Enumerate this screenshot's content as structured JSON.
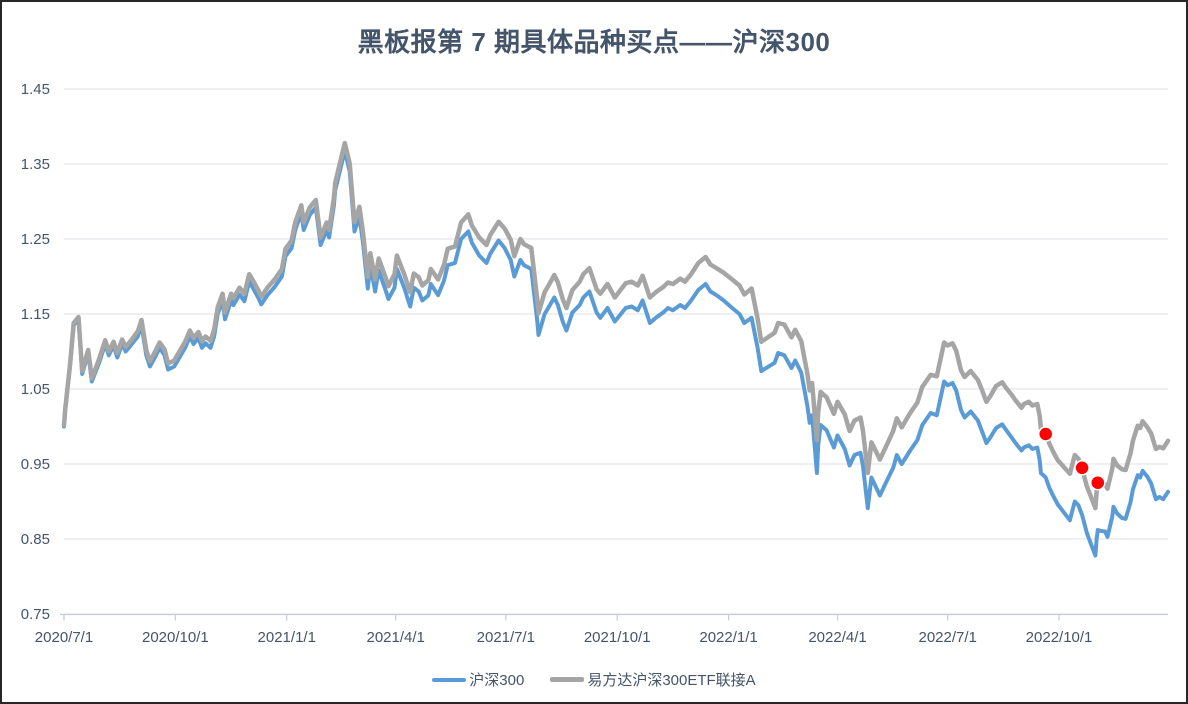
{
  "chart_data": {
    "type": "line",
    "title": "黑板报第 7 期具体品种买点——沪深300",
    "legend_position": "bottom",
    "grid": true,
    "y_min": 0.75,
    "y_max": 1.45,
    "y_ticks": [
      "1.45",
      "1.35",
      "1.25",
      "1.15",
      "1.05",
      "0.95",
      "0.85",
      "0.75"
    ],
    "x_range": {
      "start": "2020-07-01",
      "end": "2022-12-30"
    },
    "x_ticks": [
      {
        "label": "2020/7/1",
        "date": "2020-07-01"
      },
      {
        "label": "2020/10/1",
        "date": "2020-10-01"
      },
      {
        "label": "2021/1/1",
        "date": "2021-01-01"
      },
      {
        "label": "2021/4/1",
        "date": "2021-04-01"
      },
      {
        "label": "2021/7/1",
        "date": "2021-07-01"
      },
      {
        "label": "2021/10/1",
        "date": "2021-10-01"
      },
      {
        "label": "2022/1/1",
        "date": "2022-01-01"
      },
      {
        "label": "2022/4/1",
        "date": "2022-04-01"
      },
      {
        "label": "2022/7/1",
        "date": "2022-07-01"
      },
      {
        "label": "2022/10/1",
        "date": "2022-10-01"
      }
    ],
    "colors": {
      "hs300": "#5B9BD5",
      "etf": "#A5A5A5",
      "marker": "#FF0000",
      "gridline": "#DCE1E9",
      "axis": "#C7CCD6",
      "label": "#44546A",
      "title": "#44546A"
    },
    "series": [
      {
        "id": "hs300",
        "name": "沪深300",
        "color": "#5B9BD5",
        "width": 4,
        "col": 1
      },
      {
        "id": "etf-feeder",
        "name": "易方达沪深300ETF联接A",
        "color": "#A5A5A5",
        "width": 4.5,
        "col": 2
      }
    ],
    "markers": [
      {
        "date": "2022-09-20",
        "value": 0.99
      },
      {
        "date": "2022-10-20",
        "value": 0.945
      },
      {
        "date": "2022-11-02",
        "value": 0.925
      }
    ],
    "rows": [
      [
        "2020-07-01",
        1.0,
        1.002
      ],
      [
        "2020-07-02",
        1.021,
        1.023
      ],
      [
        "2020-07-06",
        1.081,
        1.084
      ],
      [
        "2020-07-09",
        1.135,
        1.138
      ],
      [
        "2020-07-13",
        1.143,
        1.146
      ],
      [
        "2020-07-16",
        1.07,
        1.074
      ],
      [
        "2020-07-21",
        1.098,
        1.102
      ],
      [
        "2020-07-24",
        1.06,
        1.064
      ],
      [
        "2020-07-30",
        1.085,
        1.09
      ],
      [
        "2020-08-04",
        1.11,
        1.115
      ],
      [
        "2020-08-07",
        1.095,
        1.1
      ],
      [
        "2020-08-11",
        1.108,
        1.113
      ],
      [
        "2020-08-14",
        1.092,
        1.098
      ],
      [
        "2020-08-18",
        1.11,
        1.116
      ],
      [
        "2020-08-21",
        1.1,
        1.106
      ],
      [
        "2020-08-26",
        1.11,
        1.116
      ],
      [
        "2020-08-31",
        1.12,
        1.127
      ],
      [
        "2020-09-03",
        1.135,
        1.142
      ],
      [
        "2020-09-07",
        1.095,
        1.102
      ],
      [
        "2020-09-10",
        1.08,
        1.087
      ],
      [
        "2020-09-15",
        1.095,
        1.102
      ],
      [
        "2020-09-18",
        1.105,
        1.112
      ],
      [
        "2020-09-22",
        1.095,
        1.103
      ],
      [
        "2020-09-25",
        1.076,
        1.084
      ],
      [
        "2020-09-30",
        1.08,
        1.088
      ],
      [
        "2020-10-09",
        1.105,
        1.113
      ],
      [
        "2020-10-13",
        1.12,
        1.128
      ],
      [
        "2020-10-16",
        1.11,
        1.118
      ],
      [
        "2020-10-20",
        1.118,
        1.126
      ],
      [
        "2020-10-23",
        1.105,
        1.114
      ],
      [
        "2020-10-26",
        1.111,
        1.12
      ],
      [
        "2020-10-30",
        1.105,
        1.114
      ],
      [
        "2020-11-02",
        1.12,
        1.129
      ],
      [
        "2020-11-05",
        1.15,
        1.159
      ],
      [
        "2020-11-09",
        1.168,
        1.177
      ],
      [
        "2020-11-11",
        1.143,
        1.152
      ],
      [
        "2020-11-16",
        1.168,
        1.177
      ],
      [
        "2020-11-18",
        1.162,
        1.171
      ],
      [
        "2020-11-23",
        1.176,
        1.185
      ],
      [
        "2020-11-27",
        1.167,
        1.177
      ],
      [
        "2020-12-01",
        1.193,
        1.203
      ],
      [
        "2020-12-04",
        1.185,
        1.195
      ],
      [
        "2020-12-09",
        1.17,
        1.18
      ],
      [
        "2020-12-11",
        1.163,
        1.173
      ],
      [
        "2020-12-16",
        1.175,
        1.185
      ],
      [
        "2020-12-22",
        1.186,
        1.196
      ],
      [
        "2020-12-28",
        1.2,
        1.21
      ],
      [
        "2020-12-31",
        1.227,
        1.237
      ],
      [
        "2021-01-05",
        1.238,
        1.248
      ],
      [
        "2021-01-08",
        1.262,
        1.272
      ],
      [
        "2021-01-13",
        1.285,
        1.295
      ],
      [
        "2021-01-15",
        1.262,
        1.272
      ],
      [
        "2021-01-20",
        1.282,
        1.292
      ],
      [
        "2021-01-25",
        1.292,
        1.302
      ],
      [
        "2021-01-29",
        1.242,
        1.252
      ],
      [
        "2021-02-03",
        1.262,
        1.272
      ],
      [
        "2021-02-05",
        1.252,
        1.262
      ],
      [
        "2021-02-09",
        1.295,
        1.305
      ],
      [
        "2021-02-10",
        1.315,
        1.325
      ],
      [
        "2021-02-18",
        1.368,
        1.378
      ],
      [
        "2021-02-22",
        1.34,
        1.351
      ],
      [
        "2021-02-26",
        1.26,
        1.272
      ],
      [
        "2021-03-02",
        1.28,
        1.293
      ],
      [
        "2021-03-05",
        1.245,
        1.259
      ],
      [
        "2021-03-09",
        1.184,
        1.199
      ],
      [
        "2021-03-11",
        1.216,
        1.231
      ],
      [
        "2021-03-15",
        1.18,
        1.196
      ],
      [
        "2021-03-18",
        1.208,
        1.224
      ],
      [
        "2021-03-24",
        1.18,
        1.197
      ],
      [
        "2021-03-26",
        1.17,
        1.187
      ],
      [
        "2021-03-31",
        1.185,
        1.203
      ],
      [
        "2021-04-02",
        1.21,
        1.228
      ],
      [
        "2021-04-08",
        1.185,
        1.203
      ],
      [
        "2021-04-13",
        1.16,
        1.179
      ],
      [
        "2021-04-16",
        1.185,
        1.204
      ],
      [
        "2021-04-20",
        1.18,
        1.199
      ],
      [
        "2021-04-23",
        1.168,
        1.188
      ],
      [
        "2021-04-28",
        1.175,
        1.195
      ],
      [
        "2021-04-30",
        1.19,
        1.21
      ],
      [
        "2021-05-06",
        1.175,
        1.196
      ],
      [
        "2021-05-11",
        1.195,
        1.216
      ],
      [
        "2021-05-14",
        1.215,
        1.237
      ],
      [
        "2021-05-20",
        1.218,
        1.24
      ],
      [
        "2021-05-25",
        1.25,
        1.272
      ],
      [
        "2021-05-31",
        1.26,
        1.283
      ],
      [
        "2021-06-03",
        1.245,
        1.268
      ],
      [
        "2021-06-09",
        1.228,
        1.252
      ],
      [
        "2021-06-15",
        1.218,
        1.242
      ],
      [
        "2021-06-18",
        1.23,
        1.255
      ],
      [
        "2021-06-25",
        1.248,
        1.273
      ],
      [
        "2021-06-30",
        1.238,
        1.264
      ],
      [
        "2021-07-05",
        1.222,
        1.249
      ],
      [
        "2021-07-08",
        1.2,
        1.227
      ],
      [
        "2021-07-13",
        1.222,
        1.25
      ],
      [
        "2021-07-16",
        1.215,
        1.243
      ],
      [
        "2021-07-22",
        1.21,
        1.238
      ],
      [
        "2021-07-27",
        1.14,
        1.169
      ],
      [
        "2021-07-28",
        1.122,
        1.151
      ],
      [
        "2021-08-02",
        1.15,
        1.179
      ],
      [
        "2021-08-05",
        1.158,
        1.187
      ],
      [
        "2021-08-10",
        1.172,
        1.202
      ],
      [
        "2021-08-13",
        1.162,
        1.192
      ],
      [
        "2021-08-17",
        1.14,
        1.17
      ],
      [
        "2021-08-20",
        1.128,
        1.158
      ],
      [
        "2021-08-25",
        1.152,
        1.182
      ],
      [
        "2021-08-31",
        1.162,
        1.193
      ],
      [
        "2021-09-03",
        1.172,
        1.203
      ],
      [
        "2021-09-08",
        1.18,
        1.211
      ],
      [
        "2021-09-14",
        1.152,
        1.183
      ],
      [
        "2021-09-17",
        1.145,
        1.177
      ],
      [
        "2021-09-23",
        1.158,
        1.19
      ],
      [
        "2021-09-29",
        1.14,
        1.172
      ],
      [
        "2021-10-08",
        1.158,
        1.191
      ],
      [
        "2021-10-13",
        1.16,
        1.193
      ],
      [
        "2021-10-18",
        1.155,
        1.188
      ],
      [
        "2021-10-22",
        1.168,
        1.201
      ],
      [
        "2021-10-28",
        1.138,
        1.172
      ],
      [
        "2021-11-02",
        1.145,
        1.179
      ],
      [
        "2021-11-08",
        1.152,
        1.186
      ],
      [
        "2021-11-12",
        1.158,
        1.192
      ],
      [
        "2021-11-16",
        1.155,
        1.19
      ],
      [
        "2021-11-22",
        1.162,
        1.197
      ],
      [
        "2021-11-26",
        1.158,
        1.193
      ],
      [
        "2021-12-01",
        1.168,
        1.203
      ],
      [
        "2021-12-07",
        1.182,
        1.218
      ],
      [
        "2021-12-13",
        1.19,
        1.226
      ],
      [
        "2021-12-17",
        1.18,
        1.216
      ],
      [
        "2021-12-22",
        1.175,
        1.211
      ],
      [
        "2021-12-28",
        1.168,
        1.205
      ],
      [
        "2022-01-04",
        1.158,
        1.196
      ],
      [
        "2022-01-10",
        1.15,
        1.188
      ],
      [
        "2022-01-14",
        1.138,
        1.176
      ],
      [
        "2022-01-20",
        1.145,
        1.184
      ],
      [
        "2022-01-25",
        1.105,
        1.144
      ],
      [
        "2022-01-28",
        1.074,
        1.113
      ],
      [
        "2022-02-08",
        1.085,
        1.125
      ],
      [
        "2022-02-11",
        1.098,
        1.138
      ],
      [
        "2022-02-16",
        1.095,
        1.136
      ],
      [
        "2022-02-22",
        1.078,
        1.119
      ],
      [
        "2022-02-25",
        1.088,
        1.129
      ],
      [
        "2022-03-02",
        1.072,
        1.114
      ],
      [
        "2022-03-07",
        1.028,
        1.071
      ],
      [
        "2022-03-09",
        1.005,
        1.048
      ],
      [
        "2022-03-11",
        1.015,
        1.058
      ],
      [
        "2022-03-15",
        0.938,
        0.982
      ],
      [
        "2022-03-16",
        0.975,
        1.019
      ],
      [
        "2022-03-18",
        1.002,
        1.046
      ],
      [
        "2022-03-23",
        0.995,
        1.039
      ],
      [
        "2022-03-29",
        0.972,
        1.017
      ],
      [
        "2022-04-01",
        0.988,
        1.033
      ],
      [
        "2022-04-07",
        0.97,
        1.016
      ],
      [
        "2022-04-11",
        0.948,
        0.994
      ],
      [
        "2022-04-15",
        0.962,
        1.008
      ],
      [
        "2022-04-20",
        0.965,
        1.012
      ],
      [
        "2022-04-22",
        0.948,
        0.995
      ],
      [
        "2022-04-26",
        0.891,
        0.938
      ],
      [
        "2022-04-29",
        0.932,
        0.979
      ],
      [
        "2022-05-06",
        0.908,
        0.956
      ],
      [
        "2022-05-11",
        0.925,
        0.973
      ],
      [
        "2022-05-17",
        0.945,
        0.994
      ],
      [
        "2022-05-20",
        0.962,
        1.011
      ],
      [
        "2022-05-24",
        0.95,
        0.999
      ],
      [
        "2022-05-31",
        0.968,
        1.018
      ],
      [
        "2022-06-06",
        0.982,
        1.032
      ],
      [
        "2022-06-10",
        1.002,
        1.053
      ],
      [
        "2022-06-17",
        1.018,
        1.069
      ],
      [
        "2022-06-22",
        1.015,
        1.067
      ],
      [
        "2022-06-28",
        1.06,
        1.112
      ],
      [
        "2022-07-01",
        1.055,
        1.108
      ],
      [
        "2022-07-05",
        1.058,
        1.111
      ],
      [
        "2022-07-08",
        1.048,
        1.101
      ],
      [
        "2022-07-12",
        1.022,
        1.075
      ],
      [
        "2022-07-15",
        1.012,
        1.066
      ],
      [
        "2022-07-20",
        1.02,
        1.074
      ],
      [
        "2022-07-26",
        1.008,
        1.062
      ],
      [
        "2022-07-29",
        0.995,
        1.05
      ],
      [
        "2022-08-02",
        0.978,
        1.033
      ],
      [
        "2022-08-05",
        0.985,
        1.04
      ],
      [
        "2022-08-10",
        0.998,
        1.054
      ],
      [
        "2022-08-15",
        1.003,
        1.059
      ],
      [
        "2022-08-18",
        0.996,
        1.052
      ],
      [
        "2022-08-23",
        0.985,
        1.042
      ],
      [
        "2022-08-26",
        0.978,
        1.035
      ],
      [
        "2022-08-31",
        0.968,
        1.025
      ],
      [
        "2022-09-02",
        0.972,
        1.03
      ],
      [
        "2022-09-06",
        0.975,
        1.033
      ],
      [
        "2022-09-09",
        0.97,
        1.028
      ],
      [
        "2022-09-13",
        0.972,
        1.03
      ],
      [
        "2022-09-15",
        0.955,
        1.014
      ],
      [
        "2022-09-16",
        0.938,
        0.997
      ],
      [
        "2022-09-20",
        0.932,
        0.991
      ],
      [
        "2022-09-23",
        0.918,
        0.977
      ],
      [
        "2022-09-26",
        0.908,
        0.967
      ],
      [
        "2022-09-28",
        0.902,
        0.961
      ],
      [
        "2022-09-30",
        0.896,
        0.955
      ],
      [
        "2022-10-10",
        0.875,
        0.937
      ],
      [
        "2022-10-12",
        0.888,
        0.95
      ],
      [
        "2022-10-14",
        0.9,
        0.962
      ],
      [
        "2022-10-17",
        0.895,
        0.957
      ],
      [
        "2022-10-20",
        0.882,
        0.944
      ],
      [
        "2022-10-24",
        0.858,
        0.92
      ],
      [
        "2022-10-27",
        0.845,
        0.908
      ],
      [
        "2022-10-31",
        0.828,
        0.891
      ],
      [
        "2022-11-01",
        0.85,
        0.913
      ],
      [
        "2022-11-02",
        0.862,
        0.925
      ],
      [
        "2022-11-04",
        0.861,
        0.924
      ],
      [
        "2022-11-08",
        0.86,
        0.923
      ],
      [
        "2022-11-10",
        0.853,
        0.917
      ],
      [
        "2022-11-14",
        0.88,
        0.944
      ],
      [
        "2022-11-15",
        0.893,
        0.957
      ],
      [
        "2022-11-18",
        0.884,
        0.948
      ],
      [
        "2022-11-22",
        0.878,
        0.943
      ],
      [
        "2022-11-25",
        0.877,
        0.942
      ],
      [
        "2022-11-29",
        0.899,
        0.964
      ],
      [
        "2022-12-01",
        0.916,
        0.981
      ],
      [
        "2022-12-05",
        0.935,
        1.001
      ],
      [
        "2022-12-07",
        0.932,
        0.998
      ],
      [
        "2022-12-09",
        0.941,
        1.007
      ],
      [
        "2022-12-13",
        0.933,
        0.999
      ],
      [
        "2022-12-16",
        0.924,
        0.991
      ],
      [
        "2022-12-20",
        0.903,
        0.97
      ],
      [
        "2022-12-23",
        0.906,
        0.973
      ],
      [
        "2022-12-26",
        0.903,
        0.971
      ],
      [
        "2022-12-30",
        0.913,
        0.981
      ]
    ]
  }
}
